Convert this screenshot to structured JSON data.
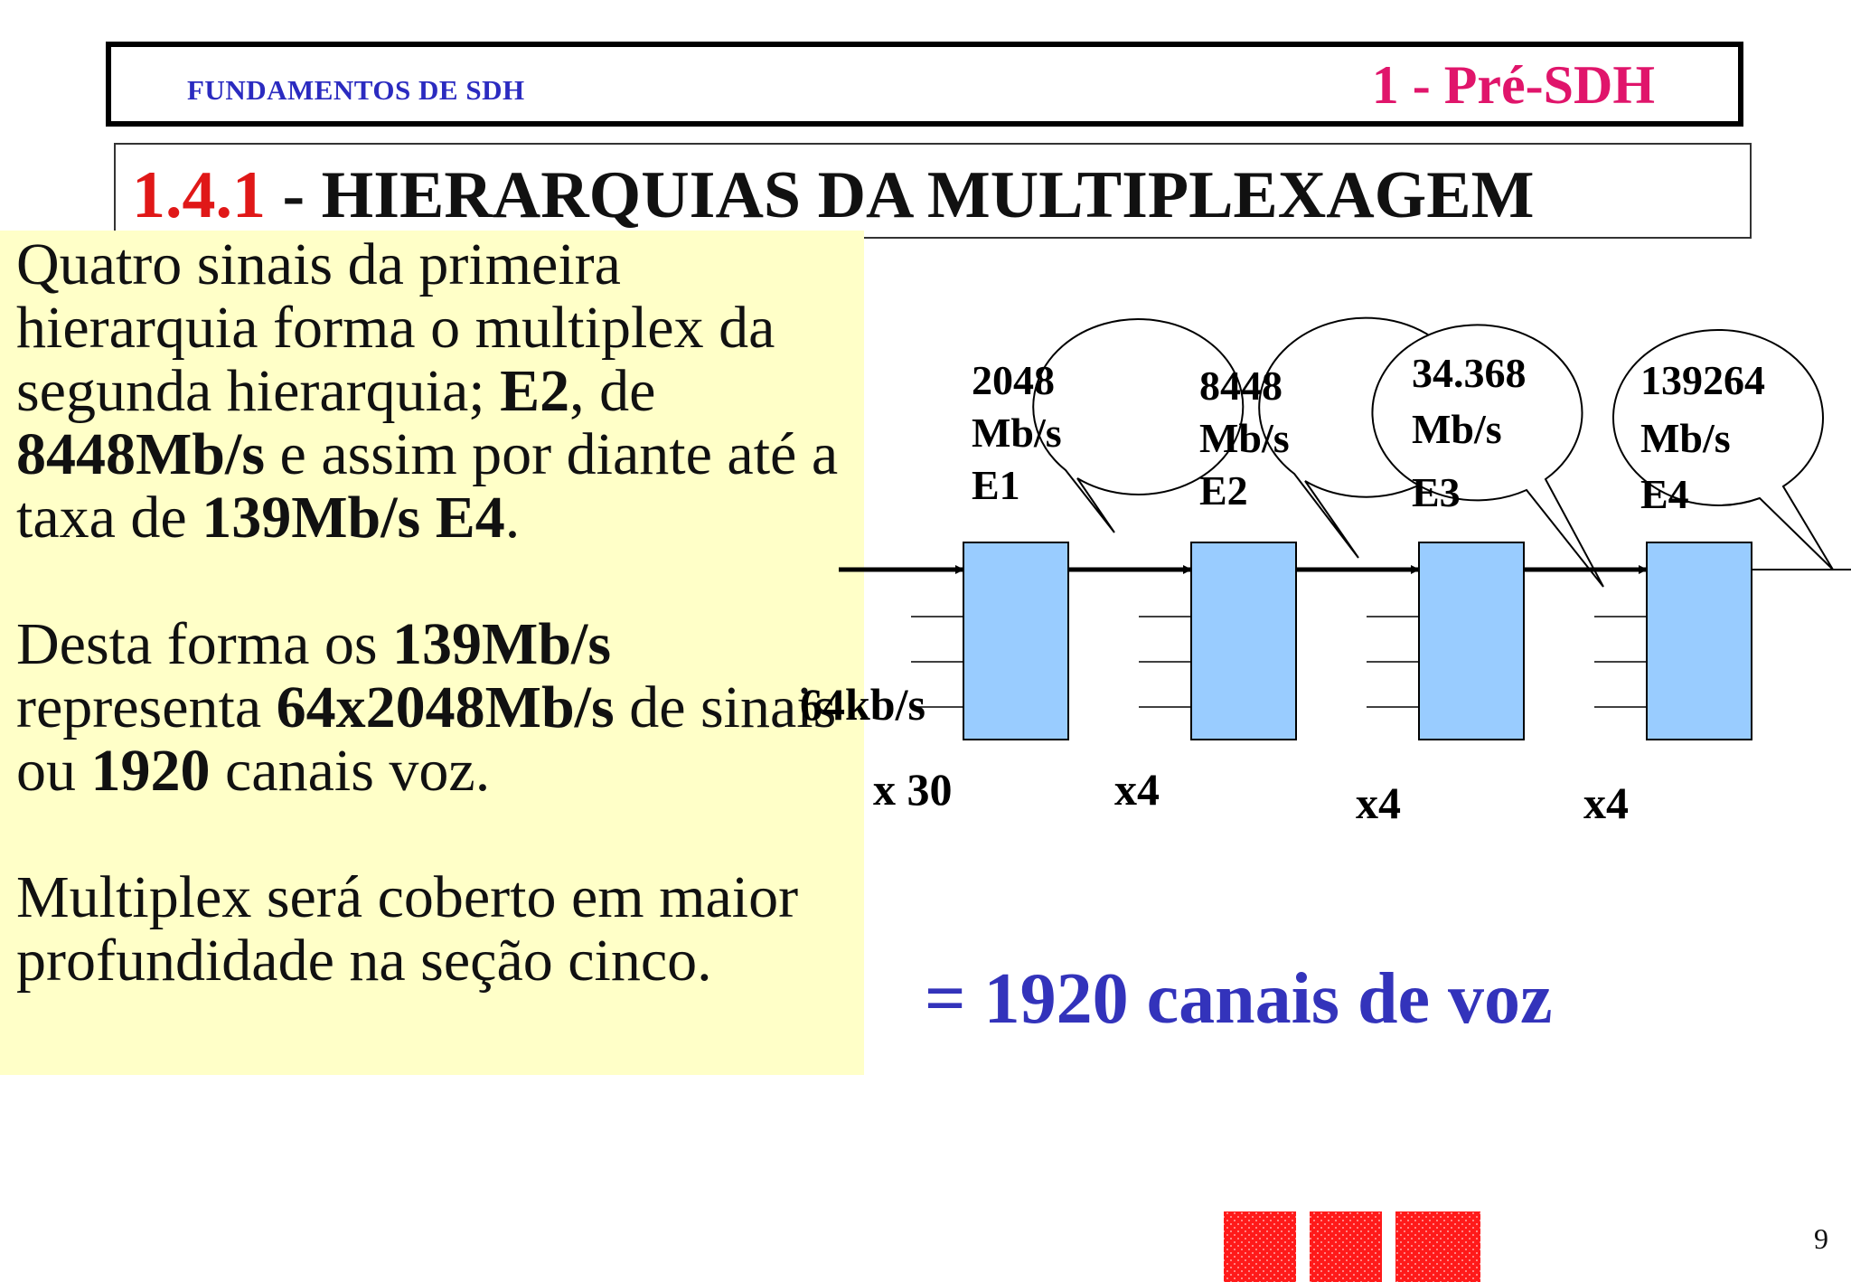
{
  "header": {
    "left_text": "FUNDAMENTOS DE SDH",
    "right_text": "1 - Pré-SDH"
  },
  "title": {
    "number": "1.4.1",
    "text": " - HIERARQUIAS  DA  MULTIPLEXAGEM"
  },
  "body": {
    "p1": {
      "a": "Quatro sinais da primeira hierarquia forma o multiplex da segunda hierarquia; ",
      "b": "E2",
      "c": ", de ",
      "d": "8448Mb/s",
      "e": " e assim por diante até a taxa de ",
      "f": "139Mb/s E4",
      "g": "."
    },
    "p2": {
      "a": "Desta forma os ",
      "b": "139Mb/s",
      "c": " representa ",
      "d": "64x2048Mb/s",
      "e": " de sinais ou ",
      "f": "1920",
      "g": " canais voz."
    },
    "p3": "Multiplex será coberto em maior profundidade na seção cinco."
  },
  "diagram": {
    "input_label": "64kb/s",
    "stages": [
      {
        "rate": "2048",
        "unit": "Mb/s",
        "level": "E1",
        "factor": "x 30"
      },
      {
        "rate": "8448",
        "unit": "Mb/s",
        "level": "E2",
        "factor": "x4"
      },
      {
        "rate": "34.368",
        "unit": "Mb/s",
        "level": "E3",
        "factor": "x4"
      },
      {
        "rate": "139264",
        "unit": "Mb/s",
        "level": "E4",
        "factor": "x4"
      }
    ],
    "box_color": "#99ccff",
    "bubble_fill": "#ffffff"
  },
  "equation": "= 1920 canais de voz",
  "page_number": "9",
  "colors": {
    "header_left": "#2b2bc0",
    "header_right": "#e0156b",
    "title_number": "#e01818",
    "panel_bg": "#ffffc8",
    "equation": "#3333bb",
    "deco_squares": "#ff1a1a"
  }
}
